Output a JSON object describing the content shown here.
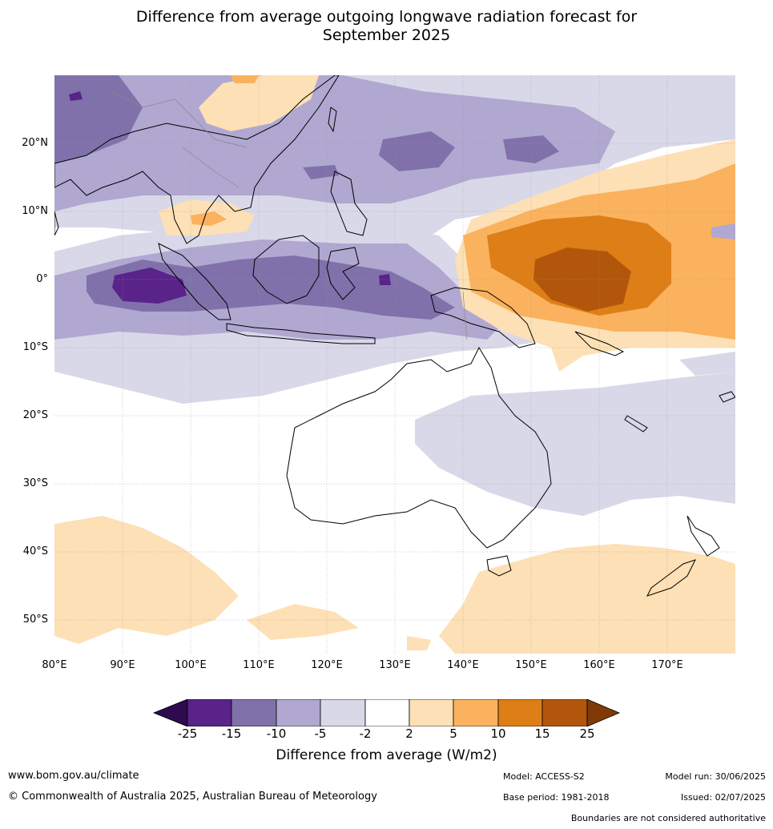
{
  "title_line1": "Difference from average outgoing longwave radiation forecast for",
  "title_line2": "September 2025",
  "map": {
    "lon_labels": [
      "80°E",
      "90°E",
      "100°E",
      "110°E",
      "120°E",
      "130°E",
      "140°E",
      "150°E",
      "160°E",
      "170°E"
    ],
    "lat_labels": [
      "20°N",
      "10°N",
      "0°",
      "10°S",
      "20°S",
      "30°S",
      "40°S",
      "50°S"
    ]
  },
  "colorbar": {
    "ticks": [
      "-25",
      "-15",
      "-10",
      "-5",
      "-2",
      "2",
      "5",
      "10",
      "15",
      "25"
    ],
    "colors": [
      "#2d0b4e",
      "#59238a",
      "#8071ab",
      "#b0a8d0",
      "#d9d8e8",
      "#ffffff",
      "#fde0b5",
      "#fab25e",
      "#de7e16",
      "#b2560b",
      "#7f3a08"
    ],
    "label": "Difference from average (W/m2)"
  },
  "footer": {
    "url": "www.bom.gov.au/climate",
    "copyright": "© Commonwealth of Australia 2025, Australian Bureau of Meteorology",
    "model": "Model: ACCESS-S2",
    "base_period": "Base period: 1981-2018",
    "model_run": "Model run: 30/06/2025",
    "issued": "Issued: 02/07/2025",
    "disclaimer": "Boundaries are not considered authoritative"
  }
}
